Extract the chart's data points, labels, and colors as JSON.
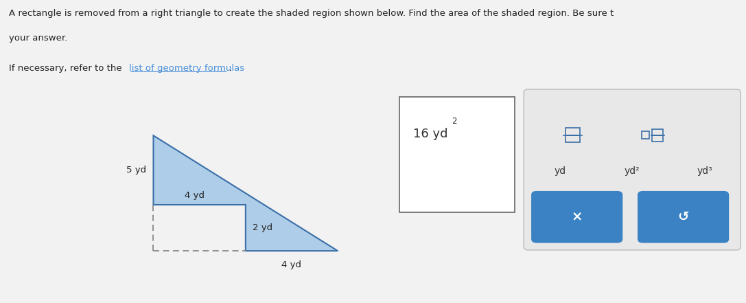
{
  "bg_color": "#f2f2f2",
  "title_line1": "A rectangle is removed from a right triangle to create the shaded region shown below. Find the area of the shaded region. Be sure t",
  "title_line2": "your answer.",
  "subtitle_pre": "If necessary, refer to the ",
  "subtitle_link": "list of geometry formulas",
  "subtitle_post": ".",
  "triangle_color": "#aecde8",
  "triangle_edge_color": "#3a6fa8",
  "dashed_color": "#888888",
  "text_color_dark": "#222222",
  "text_color_link": "#4a90d9",
  "blue_button_color": "#3b82c4",
  "label_5yd": "5 yd",
  "label_4yd_top": "4 yd",
  "label_2yd": "2 yd",
  "label_4yd_bot": "4 yd",
  "answer_text": "16 yd",
  "answer_exp": "2",
  "btn_x_label": "×",
  "btn_undo_label": "↺",
  "unit_yd": "yd",
  "unit_yd2": "yd²",
  "unit_yd3": "yd³"
}
